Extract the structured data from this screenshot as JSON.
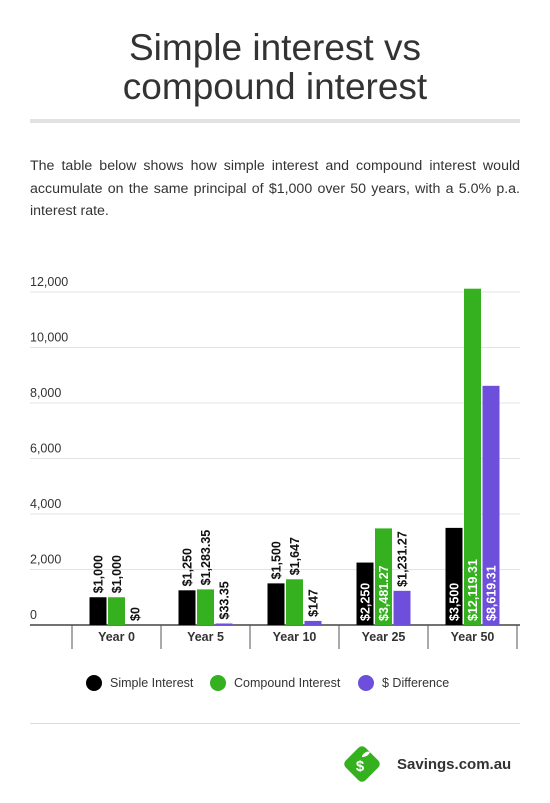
{
  "header": {
    "title_line1": "Simple interest vs",
    "title_line2": "compound interest"
  },
  "intro": {
    "text": "The table below shows how simple interest and compound interest would accumulate on the same principal of $1,000 over 50 years, with a 5.0% p.a. interest rate."
  },
  "chart_data": {
    "type": "bar",
    "title": "",
    "xlabel": "",
    "ylabel": "",
    "ylim": [
      0,
      12000
    ],
    "yticks": [
      0,
      2000,
      4000,
      6000,
      8000,
      10000,
      12000
    ],
    "ytick_labels": [
      "0",
      "2,000",
      "4,000",
      "6,000",
      "8,000",
      "10,000",
      "12,000"
    ],
    "grid": true,
    "legend_position": "bottom",
    "categories": [
      "Year 0",
      "Year 5",
      "Year 10",
      "Year 25",
      "Year 50"
    ],
    "series": [
      {
        "name": "Simple Interest",
        "color": "#000000",
        "values": [
          1000,
          1250,
          1500,
          2250,
          3500
        ],
        "labels": [
          "$1,000",
          "$1,250",
          "$1,500",
          "$2,250",
          "$3,500"
        ]
      },
      {
        "name": "Compound Interest",
        "color": "#35b01f",
        "values": [
          1000,
          1283.35,
          1647,
          3481.27,
          12119.31
        ],
        "labels": [
          "$1,000",
          "$1,283.35",
          "$1,647",
          "$3,481.27",
          "$12,119.31"
        ]
      },
      {
        "name": "$ Difference",
        "color": "#6d4fdc",
        "values": [
          0,
          33.35,
          147,
          1231.27,
          8619.31
        ],
        "labels": [
          "$0",
          "$33.35",
          "$147",
          "$1,231.27",
          "$8,619.31"
        ]
      }
    ]
  },
  "legend": {
    "items": [
      {
        "label": "Simple Interest",
        "color": "#000000"
      },
      {
        "label": "Compound Interest",
        "color": "#35b01f"
      },
      {
        "label": "$ Difference",
        "color": "#6d4fdc"
      }
    ]
  },
  "brand": {
    "name": "Savings.com.au",
    "logo_icon": "savings-dollar-sprout-icon",
    "logo_color": "#35b01f"
  }
}
